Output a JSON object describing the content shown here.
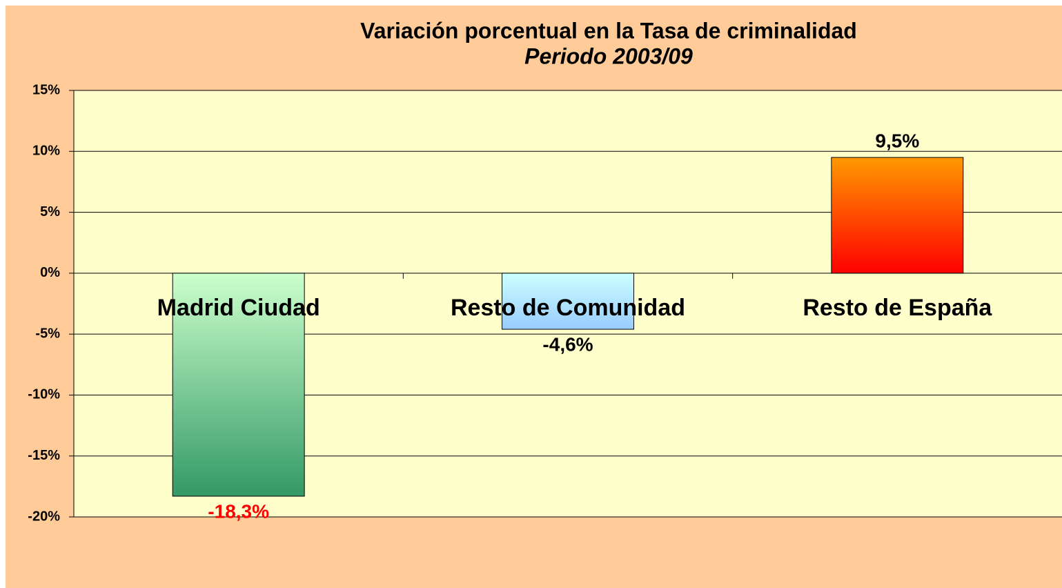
{
  "chart_data": {
    "type": "bar",
    "title": "Variación porcentual en la Tasa de criminalidad",
    "subtitle": "Periodo 2003/09",
    "categories": [
      "Madrid Ciudad",
      "Resto de Comunidad",
      "Resto de España"
    ],
    "values": [
      -18.3,
      -4.6,
      9.5
    ],
    "value_labels": [
      "-18,3%",
      "-4,6%",
      "9,5%"
    ],
    "value_label_colors": [
      "#ff0000",
      "#000000",
      "#000000"
    ],
    "gradients": [
      [
        "#ccffcc",
        "#339966"
      ],
      [
        "#ccffff",
        "#99ccff"
      ],
      [
        "#ff9900",
        "#ff0000"
      ]
    ],
    "ylim": [
      -20,
      15
    ],
    "yticks": [
      {
        "value": -20,
        "label": "-20%"
      },
      {
        "value": -15,
        "label": "-15%"
      },
      {
        "value": -10,
        "label": "-10%"
      },
      {
        "value": -5,
        "label": "-5%"
      },
      {
        "value": 0,
        "label": "0%"
      },
      {
        "value": 5,
        "label": "5%"
      },
      {
        "value": 10,
        "label": "10%"
      },
      {
        "value": 15,
        "label": "15%"
      }
    ],
    "grid": true
  }
}
